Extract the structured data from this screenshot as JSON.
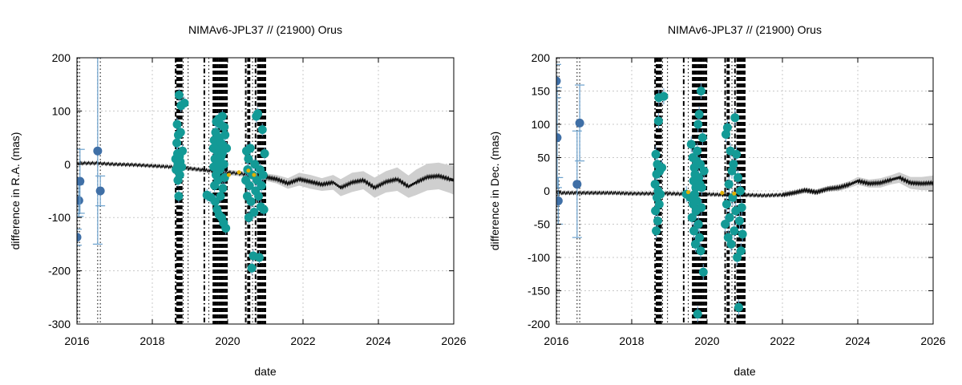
{
  "chart_data": [
    {
      "type": "scatter",
      "title": "NIMAv6-JPL37 // (21900) Orus",
      "xlabel": "date",
      "ylabel": "difference in R.A. (mas)",
      "xlim": [
        2016,
        2026
      ],
      "ylim": [
        -300,
        200
      ],
      "xticks": [
        2016,
        2018,
        2020,
        2022,
        2024,
        2026
      ],
      "yticks": [
        -300,
        -200,
        -100,
        0,
        100,
        200
      ],
      "x_tick_labels": [
        "2016",
        "2018",
        "2020",
        "2022",
        "2024",
        "2026"
      ],
      "y_tick_labels": [
        "-300",
        "-200",
        "-100",
        "0",
        "100",
        "200"
      ],
      "grid": true,
      "legend": "none",
      "colors": {
        "blue": "#3f6fa6",
        "teal": "#139a96",
        "errbar": "#6aa0cc",
        "band": "#cfcfcf",
        "curve": "#111111",
        "yellow": "#e0b000"
      },
      "vlines": [
        {
          "x": 2016.02,
          "style": "dotted"
        },
        {
          "x": 2016.07,
          "style": "dotted"
        },
        {
          "x": 2016.55,
          "style": "dotted"
        },
        {
          "x": 2016.62,
          "style": "dotted"
        },
        {
          "x": 2018.62,
          "style": "dash-dot"
        },
        {
          "x": 2018.66,
          "style": "dashed"
        },
        {
          "x": 2018.7,
          "style": "dashed"
        },
        {
          "x": 2018.74,
          "style": "dashed"
        },
        {
          "x": 2018.78,
          "style": "dashed"
        },
        {
          "x": 2018.82,
          "style": "dotted"
        },
        {
          "x": 2018.95,
          "style": "dotted"
        },
        {
          "x": 2019.38,
          "style": "dash-dot"
        },
        {
          "x": 2019.5,
          "style": "dotted"
        },
        {
          "x": 2019.62,
          "style": "dashed"
        },
        {
          "x": 2019.66,
          "style": "dashed"
        },
        {
          "x": 2019.7,
          "style": "dashed"
        },
        {
          "x": 2019.74,
          "style": "dashed"
        },
        {
          "x": 2019.78,
          "style": "dashed"
        },
        {
          "x": 2019.82,
          "style": "dashed"
        },
        {
          "x": 2019.86,
          "style": "dashed"
        },
        {
          "x": 2019.9,
          "style": "dashed"
        },
        {
          "x": 2019.94,
          "style": "dashed"
        },
        {
          "x": 2019.98,
          "style": "dashed"
        },
        {
          "x": 2020.48,
          "style": "dash-dot"
        },
        {
          "x": 2020.54,
          "style": "dashed"
        },
        {
          "x": 2020.58,
          "style": "dashed"
        },
        {
          "x": 2020.66,
          "style": "dotted"
        },
        {
          "x": 2020.74,
          "style": "dash-dot"
        },
        {
          "x": 2020.8,
          "style": "dashed"
        },
        {
          "x": 2020.84,
          "style": "dashed"
        },
        {
          "x": 2020.88,
          "style": "dashed"
        },
        {
          "x": 2020.92,
          "style": "dashed"
        },
        {
          "x": 2020.96,
          "style": "dashed"
        },
        {
          "x": 2021.0,
          "style": "dashed"
        }
      ],
      "curve": {
        "x": [
          2016.0,
          2016.5,
          2017.0,
          2017.5,
          2018.0,
          2018.5,
          2019.0,
          2019.5,
          2020.0,
          2020.5,
          2021.0,
          2021.3,
          2021.6,
          2021.9,
          2022.2,
          2022.5,
          2022.8,
          2023.0,
          2023.3,
          2023.6,
          2023.9,
          2024.2,
          2024.5,
          2024.8,
          2025.0,
          2025.3,
          2025.6,
          2025.9,
          2026.0
        ],
        "y": [
          2,
          2,
          0,
          -1,
          -3,
          -5,
          -8,
          -12,
          -15,
          -19,
          -24,
          -28,
          -36,
          -28,
          -33,
          -38,
          -34,
          -44,
          -34,
          -30,
          -44,
          -33,
          -28,
          -42,
          -34,
          -24,
          -22,
          -28,
          -30
        ],
        "band_half": [
          3,
          3,
          3,
          3,
          3,
          3,
          4,
          4,
          5,
          5,
          7,
          8,
          10,
          12,
          13,
          12,
          14,
          16,
          18,
          17,
          19,
          20,
          22,
          21,
          24,
          25,
          25,
          26,
          27
        ]
      },
      "blue_points": [
        {
          "x": 2016.0,
          "y": -137,
          "err": 15
        },
        {
          "x": 2016.05,
          "y": -68,
          "err": 30
        },
        {
          "x": 2016.08,
          "y": -32,
          "err": 60
        },
        {
          "x": 2016.55,
          "y": 25,
          "err": 175
        },
        {
          "x": 2016.62,
          "y": -50,
          "err": 28
        }
      ],
      "teal_points": [
        [
          2018.62,
          10
        ],
        [
          2018.63,
          -10
        ],
        [
          2018.65,
          40
        ],
        [
          2018.66,
          75
        ],
        [
          2018.67,
          20
        ],
        [
          2018.68,
          -30
        ],
        [
          2018.68,
          0
        ],
        [
          2018.69,
          55
        ],
        [
          2018.7,
          -60
        ],
        [
          2018.71,
          130
        ],
        [
          2018.72,
          15
        ],
        [
          2018.73,
          -20
        ],
        [
          2018.74,
          5
        ],
        [
          2018.75,
          60
        ],
        [
          2018.76,
          110
        ],
        [
          2018.78,
          -5
        ],
        [
          2018.8,
          25
        ],
        [
          2018.85,
          115
        ],
        [
          2019.45,
          -58
        ],
        [
          2019.55,
          -62
        ],
        [
          2019.62,
          30
        ],
        [
          2019.63,
          -5
        ],
        [
          2019.64,
          45
        ],
        [
          2019.65,
          -40
        ],
        [
          2019.66,
          10
        ],
        [
          2019.67,
          -70
        ],
        [
          2019.68,
          60
        ],
        [
          2019.69,
          -20
        ],
        [
          2019.7,
          80
        ],
        [
          2019.71,
          25
        ],
        [
          2019.72,
          -85
        ],
        [
          2019.73,
          35
        ],
        [
          2019.74,
          -30
        ],
        [
          2019.75,
          5
        ],
        [
          2019.76,
          85
        ],
        [
          2019.77,
          -95
        ],
        [
          2019.78,
          50
        ],
        [
          2019.79,
          -10
        ],
        [
          2019.8,
          75
        ],
        [
          2019.81,
          -60
        ],
        [
          2019.82,
          40
        ],
        [
          2019.83,
          15
        ],
        [
          2019.84,
          -100
        ],
        [
          2019.85,
          20
        ],
        [
          2019.86,
          90
        ],
        [
          2019.87,
          -45
        ],
        [
          2019.88,
          35
        ],
        [
          2019.89,
          -110
        ],
        [
          2019.9,
          0
        ],
        [
          2019.91,
          70
        ],
        [
          2019.92,
          -25
        ],
        [
          2019.93,
          55
        ],
        [
          2019.95,
          -120
        ],
        [
          2019.97,
          30
        ],
        [
          2020.48,
          -30
        ],
        [
          2020.5,
          25
        ],
        [
          2020.52,
          -60
        ],
        [
          2020.53,
          -10
        ],
        [
          2020.55,
          10
        ],
        [
          2020.56,
          -100
        ],
        [
          2020.58,
          -40
        ],
        [
          2020.6,
          30
        ],
        [
          2020.62,
          -70
        ],
        [
          2020.64,
          -195
        ],
        [
          2020.66,
          -20
        ],
        [
          2020.68,
          -172
        ],
        [
          2020.7,
          -90
        ],
        [
          2020.72,
          0
        ],
        [
          2020.74,
          -50
        ],
        [
          2020.76,
          90
        ],
        [
          2020.78,
          -30
        ],
        [
          2020.8,
          95
        ],
        [
          2020.82,
          -60
        ],
        [
          2020.84,
          -175
        ],
        [
          2020.86,
          -10
        ],
        [
          2020.88,
          -80
        ],
        [
          2020.9,
          -40
        ],
        [
          2020.92,
          65
        ],
        [
          2020.94,
          -20
        ],
        [
          2020.96,
          -85
        ],
        [
          2020.98,
          20
        ]
      ],
      "yellow_points": [
        [
          2020.03,
          -20
        ],
        [
          2020.3,
          -15
        ],
        [
          2020.55,
          -12
        ],
        [
          2020.7,
          -20
        ]
      ]
    },
    {
      "type": "scatter",
      "title": "NIMAv6-JPL37 // (21900) Orus",
      "xlabel": "date",
      "ylabel": "difference in Dec. (mas)",
      "xlim": [
        2016,
        2026
      ],
      "ylim": [
        -200,
        200
      ],
      "xticks": [
        2016,
        2018,
        2020,
        2022,
        2024,
        2026
      ],
      "yticks": [
        -200,
        -150,
        -100,
        -50,
        0,
        50,
        100,
        150,
        200
      ],
      "x_tick_labels": [
        "2016",
        "2018",
        "2020",
        "2022",
        "2024",
        "2026"
      ],
      "y_tick_labels": [
        "-200",
        "-150",
        "-100",
        "-50",
        "0",
        "50",
        "100",
        "150",
        "200"
      ],
      "grid": true,
      "legend": "none",
      "colors": {
        "blue": "#3f6fa6",
        "teal": "#139a96",
        "errbar": "#6aa0cc",
        "band": "#cfcfcf",
        "curve": "#111111",
        "yellow": "#e0b000"
      },
      "vlines": [
        {
          "x": 2016.02,
          "style": "dotted"
        },
        {
          "x": 2016.07,
          "style": "dotted"
        },
        {
          "x": 2016.55,
          "style": "dotted"
        },
        {
          "x": 2016.62,
          "style": "dotted"
        },
        {
          "x": 2018.62,
          "style": "dash-dot"
        },
        {
          "x": 2018.66,
          "style": "dashed"
        },
        {
          "x": 2018.7,
          "style": "dashed"
        },
        {
          "x": 2018.74,
          "style": "dashed"
        },
        {
          "x": 2018.78,
          "style": "dashed"
        },
        {
          "x": 2018.82,
          "style": "dotted"
        },
        {
          "x": 2018.95,
          "style": "dotted"
        },
        {
          "x": 2019.38,
          "style": "dash-dot"
        },
        {
          "x": 2019.5,
          "style": "dotted"
        },
        {
          "x": 2019.62,
          "style": "dashed"
        },
        {
          "x": 2019.66,
          "style": "dashed"
        },
        {
          "x": 2019.7,
          "style": "dashed"
        },
        {
          "x": 2019.74,
          "style": "dashed"
        },
        {
          "x": 2019.78,
          "style": "dashed"
        },
        {
          "x": 2019.82,
          "style": "dashed"
        },
        {
          "x": 2019.86,
          "style": "dashed"
        },
        {
          "x": 2019.9,
          "style": "dashed"
        },
        {
          "x": 2019.94,
          "style": "dashed"
        },
        {
          "x": 2019.98,
          "style": "dashed"
        },
        {
          "x": 2020.48,
          "style": "dash-dot"
        },
        {
          "x": 2020.54,
          "style": "dashed"
        },
        {
          "x": 2020.58,
          "style": "dashed"
        },
        {
          "x": 2020.66,
          "style": "dotted"
        },
        {
          "x": 2020.74,
          "style": "dash-dot"
        },
        {
          "x": 2020.8,
          "style": "dashed"
        },
        {
          "x": 2020.84,
          "style": "dashed"
        },
        {
          "x": 2020.88,
          "style": "dashed"
        },
        {
          "x": 2020.92,
          "style": "dashed"
        },
        {
          "x": 2020.96,
          "style": "dashed"
        },
        {
          "x": 2021.0,
          "style": "dashed"
        }
      ],
      "curve": {
        "x": [
          2016.0,
          2016.5,
          2017.0,
          2017.5,
          2018.0,
          2018.5,
          2019.0,
          2019.5,
          2020.0,
          2020.5,
          2021.0,
          2021.5,
          2022.0,
          2022.3,
          2022.6,
          2022.9,
          2023.2,
          2023.5,
          2023.8,
          2024.0,
          2024.3,
          2024.6,
          2024.9,
          2025.1,
          2025.4,
          2025.7,
          2026.0
        ],
        "y": [
          -3,
          -3,
          -3,
          -3,
          -4,
          -4,
          -4,
          -5,
          -5,
          -6,
          -6,
          -7,
          -6,
          -3,
          1,
          -2,
          3,
          5,
          10,
          15,
          11,
          12,
          17,
          20,
          12,
          11,
          12
        ],
        "band_half": [
          3,
          3,
          3,
          3,
          3,
          3,
          3,
          3,
          3,
          3,
          3,
          3,
          3,
          3,
          4,
          4,
          4,
          5,
          5,
          6,
          6,
          7,
          7,
          8,
          9,
          10,
          11
        ]
      },
      "blue_points": [
        {
          "x": 2016.0,
          "y": 165,
          "err": 25
        },
        {
          "x": 2016.02,
          "y": 80,
          "err": 75
        },
        {
          "x": 2016.05,
          "y": -15,
          "err": 35
        },
        {
          "x": 2016.55,
          "y": 10,
          "err": 80
        },
        {
          "x": 2016.62,
          "y": 102,
          "err": 57
        }
      ],
      "teal_points": [
        [
          2018.62,
          10
        ],
        [
          2018.63,
          -30
        ],
        [
          2018.64,
          55
        ],
        [
          2018.65,
          -60
        ],
        [
          2018.66,
          25
        ],
        [
          2018.67,
          -10
        ],
        [
          2018.68,
          40
        ],
        [
          2018.69,
          -45
        ],
        [
          2018.7,
          0
        ],
        [
          2018.71,
          105
        ],
        [
          2018.72,
          140
        ],
        [
          2018.73,
          -20
        ],
        [
          2018.74,
          30
        ],
        [
          2018.76,
          -5
        ],
        [
          2018.8,
          35
        ],
        [
          2018.85,
          142
        ],
        [
          2019.45,
          -5
        ],
        [
          2019.55,
          -10
        ],
        [
          2019.58,
          70
        ],
        [
          2019.6,
          -40
        ],
        [
          2019.62,
          50
        ],
        [
          2019.63,
          -20
        ],
        [
          2019.64,
          15
        ],
        [
          2019.65,
          -60
        ],
        [
          2019.66,
          35
        ],
        [
          2019.67,
          -5
        ],
        [
          2019.68,
          25
        ],
        [
          2019.69,
          -80
        ],
        [
          2019.7,
          5
        ],
        [
          2019.71,
          -30
        ],
        [
          2019.72,
          45
        ],
        [
          2019.73,
          -15
        ],
        [
          2019.74,
          60
        ],
        [
          2019.75,
          -185
        ],
        [
          2019.76,
          100
        ],
        [
          2019.77,
          -50
        ],
        [
          2019.78,
          20
        ],
        [
          2019.79,
          115
        ],
        [
          2019.8,
          -70
        ],
        [
          2019.81,
          10
        ],
        [
          2019.82,
          40
        ],
        [
          2019.83,
          -90
        ],
        [
          2019.84,
          150
        ],
        [
          2019.85,
          -25
        ],
        [
          2019.86,
          5
        ],
        [
          2019.88,
          80
        ],
        [
          2019.9,
          -122
        ],
        [
          2019.92,
          30
        ],
        [
          2020.48,
          -50
        ],
        [
          2020.5,
          85
        ],
        [
          2020.52,
          -20
        ],
        [
          2020.54,
          95
        ],
        [
          2020.56,
          -70
        ],
        [
          2020.58,
          10
        ],
        [
          2020.6,
          -40
        ],
        [
          2020.62,
          60
        ],
        [
          2020.64,
          -80
        ],
        [
          2020.66,
          30
        ],
        [
          2020.68,
          -10
        ],
        [
          2020.7,
          40
        ],
        [
          2020.72,
          -60
        ],
        [
          2020.74,
          110
        ],
        [
          2020.76,
          -30
        ],
        [
          2020.78,
          55
        ],
        [
          2020.8,
          -100
        ],
        [
          2020.82,
          20
        ],
        [
          2020.84,
          -175
        ],
        [
          2020.86,
          -45
        ],
        [
          2020.88,
          0
        ],
        [
          2020.9,
          -90
        ],
        [
          2020.92,
          -25
        ],
        [
          2020.94,
          -65
        ]
      ],
      "yellow_points": [
        [
          2019.5,
          -2
        ],
        [
          2020.4,
          -3
        ],
        [
          2020.72,
          -4
        ]
      ]
    }
  ]
}
